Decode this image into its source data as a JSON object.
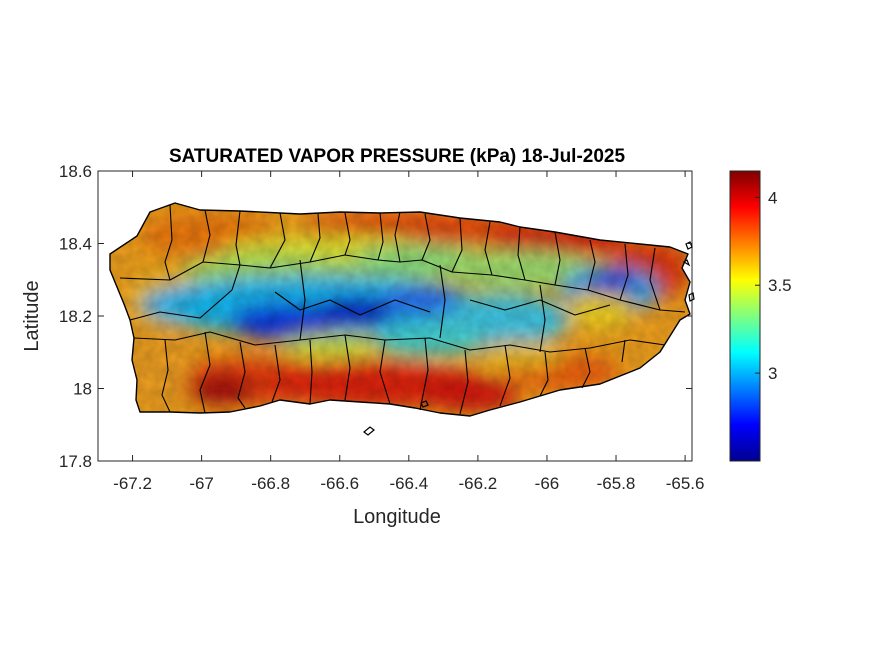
{
  "map": {
    "title": "SATURATED VAPOR PRESSURE (kPa) 18-Jul-2025",
    "xlabel": "Longitude",
    "ylabel": "Latitude",
    "xlim": [
      -67.3,
      -65.58
    ],
    "ylim": [
      17.8,
      18.6
    ],
    "x_ticks": [
      -67.2,
      -67.0,
      -66.8,
      -66.6,
      -66.4,
      -66.2,
      -66.0,
      -65.8,
      -65.6
    ],
    "x_tick_labels": [
      "-67.2",
      "-67",
      "-66.8",
      "-66.6",
      "-66.4",
      "-66.2",
      "-66",
      "-65.8",
      "-65.6"
    ],
    "y_ticks": [
      17.8,
      18.0,
      18.2,
      18.4,
      18.6
    ],
    "y_tick_labels": [
      "17.8",
      "18",
      "18.2",
      "18.4",
      "18.6"
    ],
    "colorbar": {
      "colormap": "jet",
      "range": [
        2.5,
        4.15
      ],
      "ticks": [
        3.0,
        3.5,
        4.0
      ],
      "tick_labels": [
        "3",
        "3.5",
        "4"
      ]
    },
    "field_regions": [
      {
        "region": "north coast",
        "value": 3.9
      },
      {
        "region": "northeast coast",
        "value": 4.1
      },
      {
        "region": "south coast",
        "value": 4.1
      },
      {
        "region": "southwest",
        "value": 4.15
      },
      {
        "region": "west coast",
        "value": 3.7
      },
      {
        "region": "central mountains",
        "value": 2.6
      },
      {
        "region": "eastern interior",
        "value": 2.8
      },
      {
        "region": "northern foothills",
        "value": 3.3
      }
    ],
    "grid": false,
    "boundaries": "municipality outlines"
  }
}
